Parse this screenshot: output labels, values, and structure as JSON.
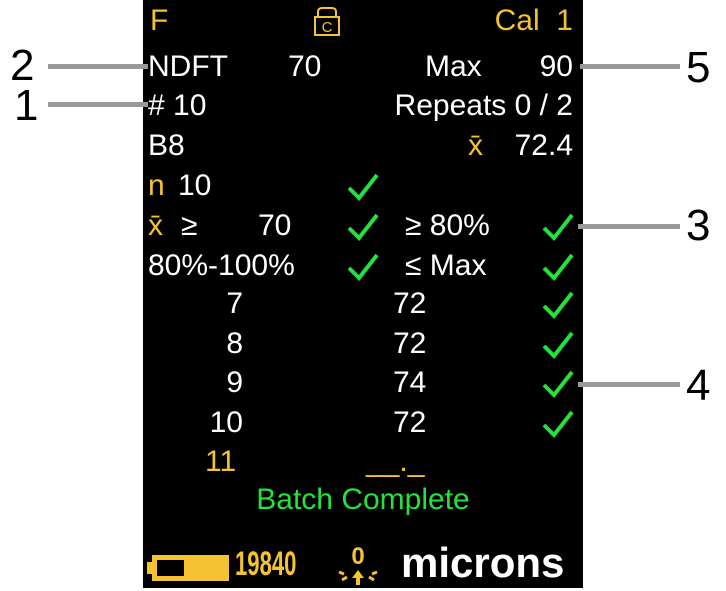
{
  "header": {
    "mode": "F",
    "lock_icon_letter": "C",
    "cal": "Cal  1"
  },
  "settings": {
    "ndft_label": "NDFT",
    "ndft_value": "70",
    "max_label": "Max",
    "max_value": "90",
    "id_label": "# 10",
    "repeats": "Repeats 0 / 2",
    "batch": "B8",
    "mean_symbol": "x̄",
    "mean_value": "72.4"
  },
  "criteria": {
    "n_label": "n",
    "n_value": "10",
    "mean_ge": "≥",
    "mean_ge_value": "70",
    "pct_ge": "≥ 80%",
    "range": "80%-100%",
    "le_max": "≤ Max"
  },
  "readings": [
    {
      "index": "7",
      "value": "72"
    },
    {
      "index": "8",
      "value": "72"
    },
    {
      "index": "9",
      "value": "74"
    },
    {
      "index": "10",
      "value": "72"
    }
  ],
  "next": {
    "index": "11",
    "value": "__._"
  },
  "status": "Batch Complete",
  "footer": {
    "battery_level": 0.6,
    "count": "19840",
    "zero_label": "0",
    "units": "microns"
  },
  "callouts": [
    "1",
    "2",
    "3",
    "4",
    "5"
  ],
  "colors": {
    "yellow": "#f5c232",
    "green": "#22e23c",
    "background": "#000000"
  }
}
